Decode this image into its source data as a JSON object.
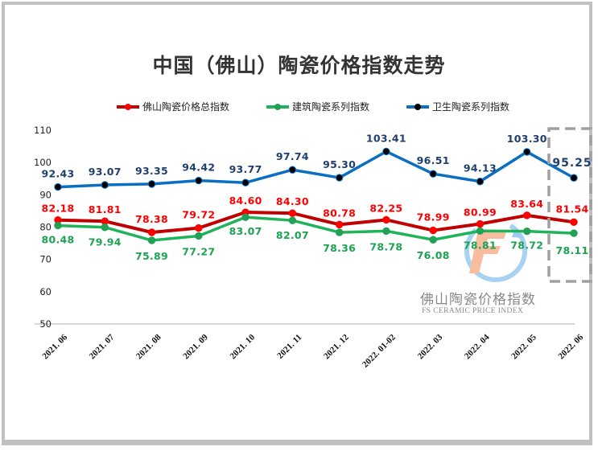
{
  "chart_data": {
    "type": "line",
    "title": "中国（佛山）陶瓷价格指数走势",
    "xlabel": "",
    "ylabel": "",
    "ylim": [
      50,
      110
    ],
    "yticks": [
      50,
      60,
      70,
      80,
      90,
      100,
      110
    ],
    "grid": false,
    "legend_position": "top",
    "categories": [
      "2021. 06",
      "2021. 07",
      "2021. 08",
      "2021. 09",
      "2021. 10",
      "2021. 11",
      "2021. 12",
      "2022. 01-02",
      "2022. 03",
      "2022. 04",
      "2022. 05",
      "2022. 06"
    ],
    "series": [
      {
        "name": "佛山陶瓷价格总指数",
        "color": "#c00000",
        "marker_color": "#ff0000",
        "label_color": "#ff0000",
        "values": [
          82.18,
          81.81,
          78.38,
          79.72,
          84.6,
          84.3,
          80.78,
          82.25,
          78.99,
          80.99,
          83.64,
          81.54
        ],
        "labels": [
          "82.18",
          "81.81",
          "78.38",
          "79.72",
          "84.60",
          "84.30",
          "80.78",
          "82.25",
          "78.99",
          "80.99",
          "83.64",
          "81.54"
        ]
      },
      {
        "name": "建筑陶瓷系列指数",
        "color": "#1fb35a",
        "marker_color": "#23a055",
        "label_color": "#1aa351",
        "values": [
          80.48,
          79.94,
          75.89,
          77.27,
          83.07,
          82.07,
          78.36,
          78.78,
          76.08,
          78.81,
          78.72,
          78.11
        ],
        "labels": [
          "80.48",
          "79.94",
          "75.89",
          "77.27",
          "83.07",
          "82.07",
          "78.36",
          "78.78",
          "76.08",
          "78.81",
          "78.72",
          "78.11"
        ]
      },
      {
        "name": "卫生陶瓷系列指数",
        "color": "#0a6fc2",
        "marker_color": "#000000",
        "label_color": "#1f3f6e",
        "values": [
          92.43,
          93.07,
          93.35,
          94.42,
          93.77,
          97.74,
          95.3,
          103.41,
          96.51,
          94.13,
          103.3,
          95.25
        ],
        "labels": [
          "92.43",
          "93.07",
          "93.35",
          "94.42",
          "93.77",
          "97.74",
          "95.30",
          "103.41",
          "96.51",
          "94.13",
          "103.30",
          "95.25"
        ]
      }
    ],
    "highlight": {
      "category": "2022. 06",
      "style": "dashed-box"
    }
  },
  "watermark": {
    "cn": "佛山陶瓷价格指数",
    "en": "FS CERAMIC PRICE INDEX",
    "logo": "fs-logo-icon"
  }
}
